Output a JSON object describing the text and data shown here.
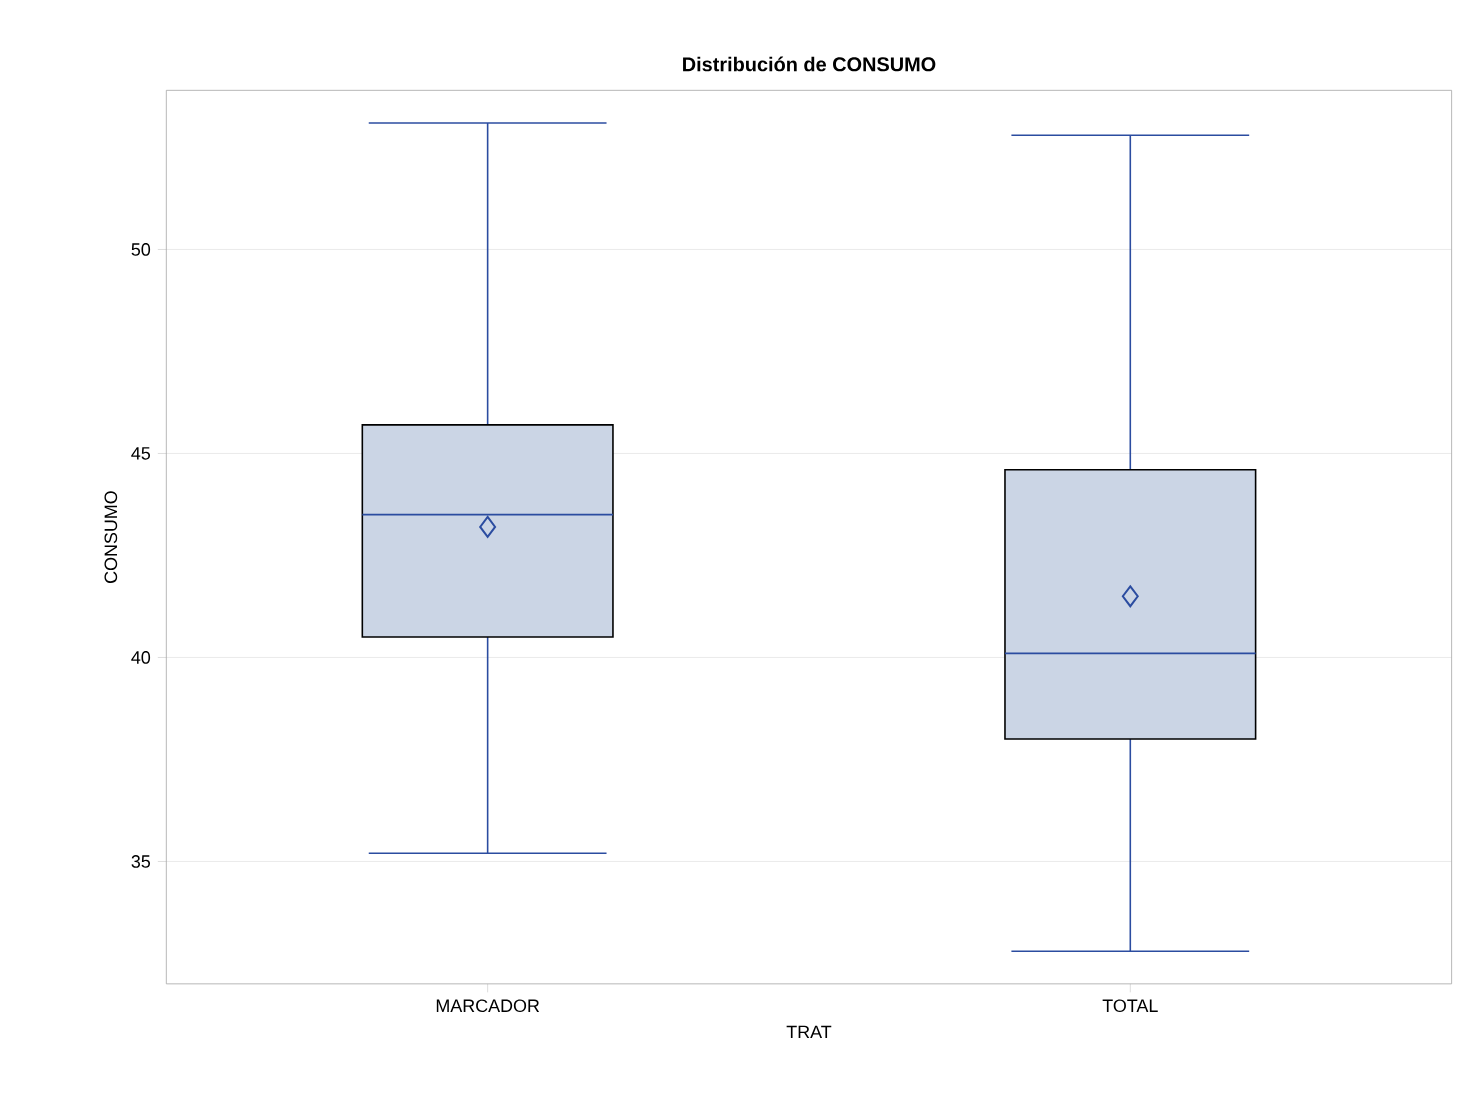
{
  "chart_data": {
    "type": "box",
    "title": "Distribución de CONSUMO",
    "xlabel": "TRAT",
    "ylabel": "CONSUMO",
    "categories": [
      "MARCADOR",
      "TOTAL"
    ],
    "color": "#cbd5e5",
    "boxes": [
      {
        "low": 35.2,
        "q1": 40.5,
        "median": 43.5,
        "q3": 45.7,
        "high": 53.1,
        "mean": 43.2
      },
      {
        "low": 32.8,
        "q1": 38.0,
        "median": 40.1,
        "q3": 44.6,
        "high": 52.8,
        "mean": 41.5
      }
    ],
    "ylim": [
      32,
      53.9
    ],
    "yticks": [
      35,
      40,
      45,
      50
    ],
    "grid": "y"
  }
}
